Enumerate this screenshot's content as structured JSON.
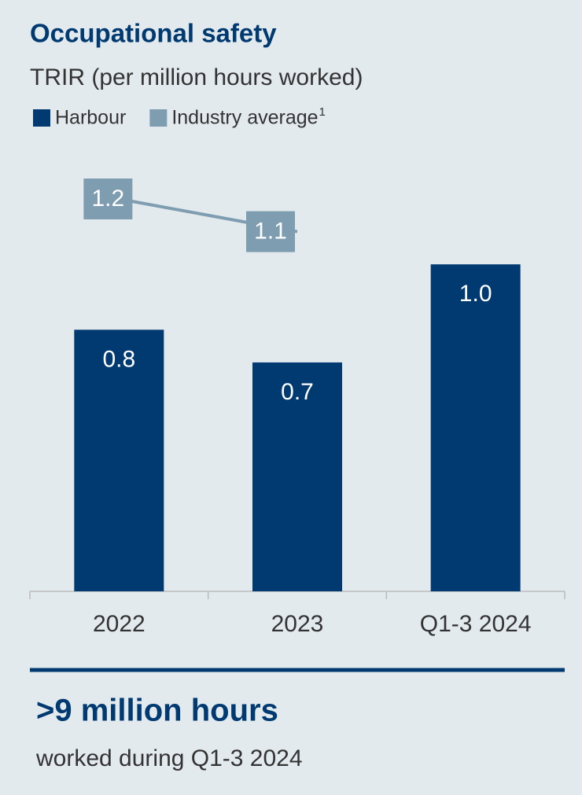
{
  "chart_data": {
    "type": "bar+line",
    "title": "Occupational safety",
    "subtitle": "TRIR (per million hours worked)",
    "categories": [
      "2022",
      "2023",
      "Q1-3 2024"
    ],
    "series": [
      {
        "name": "Harbour",
        "type": "bar",
        "color": "#003a70",
        "values": [
          0.8,
          0.7,
          1.0
        ],
        "value_labels": [
          "0.8",
          "0.7",
          "1.0"
        ]
      },
      {
        "name": "Industry average",
        "footnote": "1",
        "type": "line",
        "color": "#7f9db0",
        "values": [
          1.2,
          1.1,
          null
        ],
        "value_labels": [
          "1.2",
          "1.1",
          null
        ]
      }
    ],
    "ylim": [
      0,
      1.2
    ],
    "footer": {
      "headline": ">9 million hours",
      "text": "worked during Q1-3 2024"
    }
  }
}
